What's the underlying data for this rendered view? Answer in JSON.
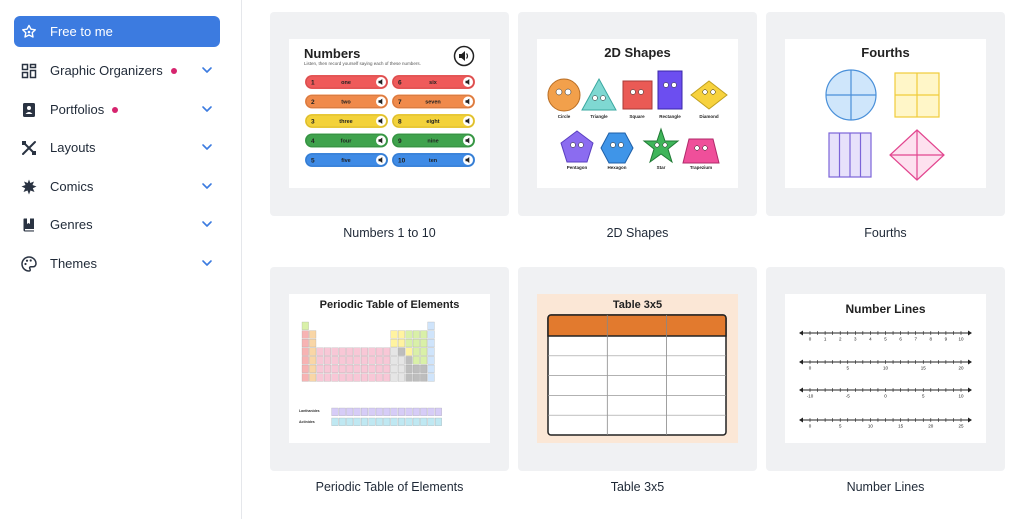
{
  "sidebar": {
    "items": [
      {
        "label": "Free to me",
        "icon": "star-badge-icon",
        "active": true,
        "dot": false,
        "chevron": false
      },
      {
        "label": "Graphic Organizers",
        "icon": "graphic-organizers-icon",
        "active": false,
        "dot": true,
        "chevron": true
      },
      {
        "label": "Portfolios",
        "icon": "portfolio-icon",
        "active": false,
        "dot": true,
        "chevron": true
      },
      {
        "label": "Layouts",
        "icon": "layouts-icon",
        "active": false,
        "dot": false,
        "chevron": true
      },
      {
        "label": "Comics",
        "icon": "comics-icon",
        "active": false,
        "dot": false,
        "chevron": true
      },
      {
        "label": "Genres",
        "icon": "book-icon",
        "active": false,
        "dot": false,
        "chevron": true
      },
      {
        "label": "Themes",
        "icon": "palette-icon",
        "active": false,
        "dot": false,
        "chevron": true
      }
    ],
    "accent_color": "#3c7be0",
    "dot_color": "#d6246e"
  },
  "templates": [
    {
      "caption": "Numbers 1 to 10",
      "thumb_title": "Numbers",
      "thumb_subtitle": "Listen, then record yourself saying each of these numbers.",
      "numbers": [
        {
          "num": "1",
          "word": "one",
          "color": "#ef5a5a"
        },
        {
          "num": "2",
          "word": "two",
          "color": "#f08a4b"
        },
        {
          "num": "3",
          "word": "three",
          "color": "#f3d23a"
        },
        {
          "num": "4",
          "word": "four",
          "color": "#3fa34d"
        },
        {
          "num": "5",
          "word": "five",
          "color": "#3f8be6"
        },
        {
          "num": "6",
          "word": "six",
          "color": "#ef5a5a"
        },
        {
          "num": "7",
          "word": "seven",
          "color": "#f08a4b"
        },
        {
          "num": "8",
          "word": "eight",
          "color": "#f3d23a"
        },
        {
          "num": "9",
          "word": "nine",
          "color": "#3fa34d"
        },
        {
          "num": "10",
          "word": "ten",
          "color": "#3f8be6"
        }
      ]
    },
    {
      "caption": "2D Shapes",
      "thumb_title": "2D Shapes",
      "shapes": [
        "Circle",
        "Triangle",
        "Square",
        "Rectangle",
        "Diamond",
        "Pentagon",
        "Hexagon",
        "Star",
        "Trapezium"
      ]
    },
    {
      "caption": "Fourths",
      "thumb_title": "Fourths"
    },
    {
      "caption": "Periodic Table of Elements",
      "thumb_title": "Periodic Table of Elements",
      "row_labels": [
        "Lanthanides",
        "Actinides"
      ]
    },
    {
      "caption": "Table 3x5",
      "thumb_title": "Table 3x5"
    },
    {
      "caption": "Number Lines",
      "thumb_title": "Number Lines",
      "lines": [
        [
          "0",
          "1",
          "2",
          "3",
          "4",
          "5",
          "6",
          "7",
          "8",
          "9",
          "10"
        ],
        [
          "0",
          "5",
          "10",
          "15",
          "20"
        ],
        [
          "-10",
          "-5",
          "0",
          "5",
          "10"
        ],
        [
          "0",
          "5",
          "10",
          "15",
          "20",
          "25"
        ]
      ]
    }
  ]
}
